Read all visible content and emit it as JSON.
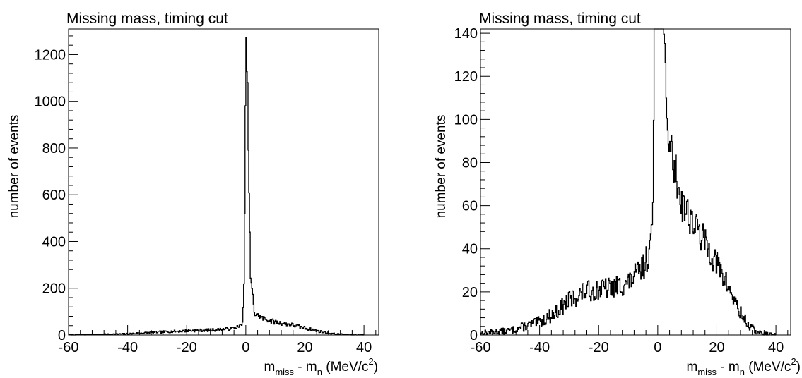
{
  "chart_data": [
    {
      "type": "histogram",
      "title": "Missing mass, timing cut",
      "xlabel": {
        "m": "m",
        "sub_miss": "miss",
        "minus": " - m",
        "sub_n": "n",
        "unit": " (MeV/c",
        "sup": "2",
        "close": ")"
      },
      "ylabel": "number of events",
      "xlim": [
        -60,
        45
      ],
      "ylim": [
        0,
        1310
      ],
      "x_ticks": [
        -60,
        -40,
        -20,
        0,
        20,
        40
      ],
      "x_tick_labels": [
        "-60",
        "-40",
        "-20",
        "0",
        "20",
        "40"
      ],
      "y_ticks": [
        0,
        200,
        400,
        600,
        800,
        1000,
        1200
      ],
      "y_tick_labels": [
        "0",
        "200",
        "400",
        "600",
        "800",
        "1000",
        "1200"
      ],
      "y_minor_step": 40,
      "x_minor_step": 4,
      "profile_points": [
        [
          -60,
          1
        ],
        [
          -50,
          2
        ],
        [
          -40,
          5
        ],
        [
          -30,
          12
        ],
        [
          -20,
          18
        ],
        [
          -10,
          22
        ],
        [
          -5,
          28
        ],
        [
          -2,
          36
        ],
        [
          -1,
          60
        ],
        [
          -0.5,
          250
        ],
        [
          0,
          1250
        ],
        [
          0.5,
          1150
        ],
        [
          1,
          700
        ],
        [
          1.6,
          250
        ],
        [
          3,
          90
        ],
        [
          6,
          70
        ],
        [
          10,
          55
        ],
        [
          15,
          45
        ],
        [
          20,
          30
        ],
        [
          25,
          15
        ],
        [
          30,
          5
        ],
        [
          35,
          1
        ],
        [
          40,
          0
        ]
      ],
      "grid": false,
      "legend": "none"
    },
    {
      "type": "histogram",
      "title": "Missing mass, timing cut",
      "xlabel": {
        "m": "m",
        "sub_miss": "miss",
        "minus": " - m",
        "sub_n": "n",
        "unit": " (MeV/c",
        "sup": "2",
        "close": ")"
      },
      "ylabel": "number of events",
      "xlim": [
        -60,
        45
      ],
      "ylim": [
        0,
        142
      ],
      "x_ticks": [
        -60,
        -40,
        -20,
        0,
        20,
        40
      ],
      "x_tick_labels": [
        "-60",
        "-40",
        "-20",
        "0",
        "20",
        "40"
      ],
      "y_ticks": [
        0,
        20,
        40,
        60,
        80,
        100,
        120,
        140
      ],
      "y_tick_labels": [
        "0",
        "20",
        "40",
        "60",
        "80",
        "100",
        "120",
        "140"
      ],
      "y_minor_step": 4,
      "x_minor_step": 4,
      "profile_points": [
        [
          -60,
          1
        ],
        [
          -50,
          2
        ],
        [
          -45,
          4
        ],
        [
          -40,
          6
        ],
        [
          -35,
          10
        ],
        [
          -30,
          16
        ],
        [
          -25,
          20
        ],
        [
          -20,
          21
        ],
        [
          -15,
          22
        ],
        [
          -10,
          24
        ],
        [
          -5,
          31
        ],
        [
          -3,
          38
        ],
        [
          -2,
          45
        ],
        [
          -1.5,
          70
        ],
        [
          -1,
          200
        ],
        [
          1,
          300
        ],
        [
          1.4,
          200
        ],
        [
          2,
          140
        ],
        [
          3,
          100
        ],
        [
          5,
          82
        ],
        [
          8,
          62
        ],
        [
          12,
          52
        ],
        [
          16,
          43
        ],
        [
          20,
          33
        ],
        [
          24,
          22
        ],
        [
          28,
          10
        ],
        [
          31,
          4
        ],
        [
          34,
          1
        ],
        [
          40,
          0
        ]
      ],
      "grid": false,
      "legend": "none"
    }
  ]
}
